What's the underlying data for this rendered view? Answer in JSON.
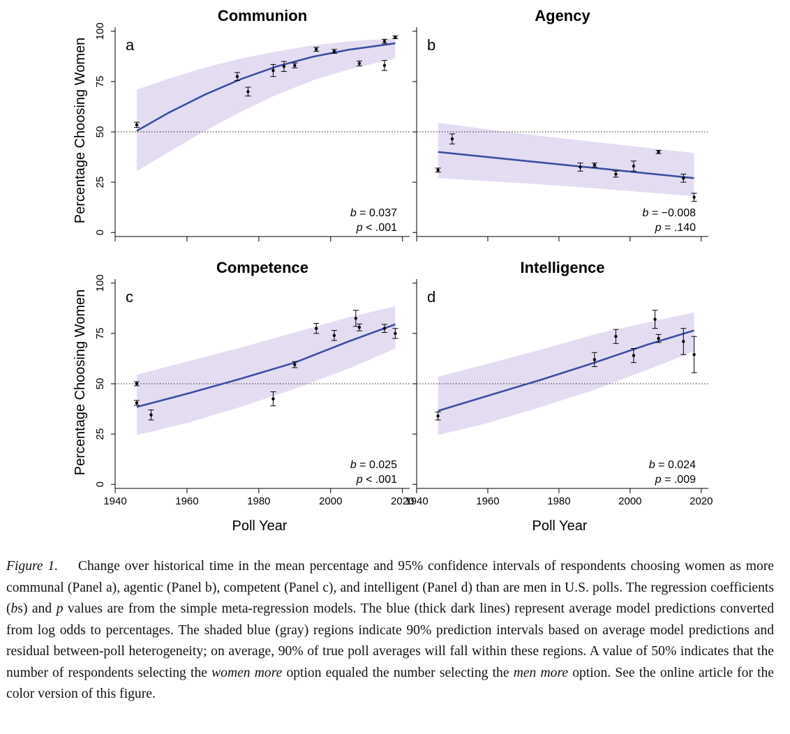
{
  "figure": {
    "shared_ylabel": "Percentage Choosing Women",
    "shared_xlabel": "Poll Year",
    "xticks": [
      1940,
      1960,
      1980,
      2000,
      2020
    ],
    "yticks": [
      0,
      25,
      50,
      75,
      100
    ]
  },
  "chart_data": [
    {
      "type": "scatter",
      "title": "Communion",
      "panel_letter": "a",
      "xlabel": "",
      "ylabel": "Percentage Choosing Women",
      "xlim": [
        1940,
        2022
      ],
      "ylim": [
        -2,
        102
      ],
      "reference_line": 50,
      "b_label": "b",
      "b_value": "= 0.037",
      "p_label": "p",
      "p_value": "< .001",
      "points": [
        {
          "x": 1946,
          "y": 53.5,
          "lo": 52.2,
          "hi": 54.8
        },
        {
          "x": 1974,
          "y": 77.5,
          "lo": 75.5,
          "hi": 79.5
        },
        {
          "x": 1977,
          "y": 70.0,
          "lo": 67.8,
          "hi": 72.2
        },
        {
          "x": 1984,
          "y": 80.5,
          "lo": 77.5,
          "hi": 83.5
        },
        {
          "x": 1987,
          "y": 82.5,
          "lo": 80.0,
          "hi": 85.0
        },
        {
          "x": 1990,
          "y": 83.0,
          "lo": 81.8,
          "hi": 84.2
        },
        {
          "x": 1996,
          "y": 91.0,
          "lo": 90.0,
          "hi": 92.0
        },
        {
          "x": 2001,
          "y": 90.0,
          "lo": 89.0,
          "hi": 91.0
        },
        {
          "x": 2008,
          "y": 84.0,
          "lo": 82.8,
          "hi": 85.2
        },
        {
          "x": 2015,
          "y": 95.0,
          "lo": 94.0,
          "hi": 96.0
        },
        {
          "x": 2015,
          "y": 83.0,
          "lo": 80.5,
          "hi": 85.5
        },
        {
          "x": 2018,
          "y": 97.0,
          "lo": 96.3,
          "hi": 97.7
        }
      ],
      "fit": {
        "x": [
          1946,
          1955,
          1965,
          1975,
          1985,
          1995,
          2005,
          2018
        ],
        "y": [
          50.5,
          59.6,
          68.5,
          76.2,
          82.5,
          87.3,
          90.8,
          94.0
        ]
      },
      "band_upper": {
        "x": [
          1946,
          1955,
          1965,
          1975,
          1985,
          1995,
          2005,
          2018
        ],
        "y": [
          71.0,
          76.5,
          82.0,
          86.5,
          90.0,
          93.0,
          95.0,
          96.5
        ]
      },
      "band_lower": {
        "x": [
          1946,
          1955,
          1965,
          1975,
          1985,
          1995,
          2005,
          2018
        ],
        "y": [
          30.5,
          40.0,
          50.5,
          60.0,
          68.5,
          75.5,
          81.0,
          86.5
        ]
      }
    },
    {
      "type": "scatter",
      "title": "Agency",
      "panel_letter": "b",
      "xlabel": "",
      "ylabel": "",
      "xlim": [
        1940,
        2022
      ],
      "ylim": [
        -2,
        102
      ],
      "reference_line": 50,
      "b_label": "b",
      "b_value": "= −0.008",
      "p_label": "p",
      "p_value": "= .140",
      "points": [
        {
          "x": 1946,
          "y": 31.0,
          "lo": 30.0,
          "hi": 32.0
        },
        {
          "x": 1950,
          "y": 46.5,
          "lo": 44.0,
          "hi": 49.0
        },
        {
          "x": 1986,
          "y": 32.5,
          "lo": 30.5,
          "hi": 34.5
        },
        {
          "x": 1990,
          "y": 33.5,
          "lo": 32.5,
          "hi": 34.5
        },
        {
          "x": 1996,
          "y": 29.0,
          "lo": 27.5,
          "hi": 30.5
        },
        {
          "x": 2001,
          "y": 33.0,
          "lo": 30.5,
          "hi": 35.5
        },
        {
          "x": 2008,
          "y": 40.0,
          "lo": 39.2,
          "hi": 40.8
        },
        {
          "x": 2015,
          "y": 27.0,
          "lo": 25.0,
          "hi": 29.0
        },
        {
          "x": 2018,
          "y": 17.5,
          "lo": 15.5,
          "hi": 19.5
        }
      ],
      "fit": {
        "x": [
          1946,
          2018
        ],
        "y": [
          40.0,
          27.0
        ]
      },
      "band_upper": {
        "x": [
          1946,
          1970,
          1990,
          2018
        ],
        "y": [
          54.5,
          49.0,
          45.0,
          39.5
        ]
      },
      "band_lower": {
        "x": [
          1946,
          1970,
          1990,
          2018
        ],
        "y": [
          27.0,
          24.5,
          22.0,
          18.0
        ]
      }
    },
    {
      "type": "scatter",
      "title": "Competence",
      "panel_letter": "c",
      "xlabel": "Poll Year",
      "ylabel": "Percentage Choosing Women",
      "xlim": [
        1940,
        2022
      ],
      "ylim": [
        -2,
        102
      ],
      "reference_line": 50,
      "b_label": "b",
      "b_value": "= 0.025",
      "p_label": "p",
      "p_value": "< .001",
      "points": [
        {
          "x": 1946,
          "y": 50.0,
          "lo": 49.0,
          "hi": 51.0
        },
        {
          "x": 1946,
          "y": 40.5,
          "lo": 39.3,
          "hi": 41.7
        },
        {
          "x": 1950,
          "y": 34.5,
          "lo": 32.0,
          "hi": 37.0
        },
        {
          "x": 1984,
          "y": 42.5,
          "lo": 39.0,
          "hi": 46.0
        },
        {
          "x": 1990,
          "y": 59.5,
          "lo": 58.0,
          "hi": 61.0
        },
        {
          "x": 1996,
          "y": 77.5,
          "lo": 75.0,
          "hi": 80.0
        },
        {
          "x": 2001,
          "y": 74.0,
          "lo": 71.5,
          "hi": 76.5
        },
        {
          "x": 2007,
          "y": 82.5,
          "lo": 78.5,
          "hi": 86.5
        },
        {
          "x": 2008,
          "y": 78.0,
          "lo": 76.3,
          "hi": 79.7
        },
        {
          "x": 2015,
          "y": 77.5,
          "lo": 75.5,
          "hi": 79.5
        },
        {
          "x": 2018,
          "y": 75.0,
          "lo": 72.5,
          "hi": 77.5
        }
      ],
      "fit": {
        "x": [
          1946,
          1960,
          1975,
          1990,
          2005,
          2018
        ],
        "y": [
          38.5,
          45.0,
          52.5,
          60.5,
          71.0,
          79.5
        ]
      },
      "band_upper": {
        "x": [
          1946,
          1960,
          1975,
          1990,
          2005,
          2018
        ],
        "y": [
          54.5,
          61.0,
          68.0,
          75.5,
          83.0,
          88.5
        ]
      },
      "band_lower": {
        "x": [
          1946,
          1960,
          1975,
          1990,
          2005,
          2018
        ],
        "y": [
          24.5,
          30.5,
          38.5,
          47.5,
          57.5,
          67.5
        ]
      }
    },
    {
      "type": "scatter",
      "title": "Intelligence",
      "panel_letter": "d",
      "xlabel": "Poll Year",
      "ylabel": "",
      "xlim": [
        1940,
        2022
      ],
      "ylim": [
        -2,
        102
      ],
      "reference_line": 50,
      "b_label": "b",
      "b_value": "= 0.024",
      "p_label": "p",
      "p_value": "= .009",
      "points": [
        {
          "x": 1946,
          "y": 34.0,
          "lo": 32.0,
          "hi": 36.0
        },
        {
          "x": 1990,
          "y": 62.0,
          "lo": 58.5,
          "hi": 65.5
        },
        {
          "x": 1996,
          "y": 73.5,
          "lo": 70.0,
          "hi": 77.0
        },
        {
          "x": 2001,
          "y": 64.0,
          "lo": 60.5,
          "hi": 67.5
        },
        {
          "x": 2007,
          "y": 82.0,
          "lo": 77.5,
          "hi": 86.5
        },
        {
          "x": 2008,
          "y": 72.5,
          "lo": 70.5,
          "hi": 74.5
        },
        {
          "x": 2015,
          "y": 71.0,
          "lo": 64.5,
          "hi": 77.5
        },
        {
          "x": 2018,
          "y": 64.5,
          "lo": 55.5,
          "hi": 73.5
        }
      ],
      "fit": {
        "x": [
          1946,
          1960,
          1975,
          1990,
          2005,
          2018
        ],
        "y": [
          36.5,
          44.0,
          52.0,
          60.5,
          69.5,
          76.5
        ]
      },
      "band_upper": {
        "x": [
          1946,
          1960,
          1975,
          1990,
          2005,
          2018
        ],
        "y": [
          53.5,
          60.0,
          67.0,
          74.5,
          80.5,
          85.5
        ]
      },
      "band_lower": {
        "x": [
          1946,
          1960,
          1975,
          1990,
          2005,
          2018
        ],
        "y": [
          24.5,
          30.5,
          38.5,
          47.0,
          57.0,
          66.0
        ]
      }
    }
  ],
  "caption": {
    "label": "Figure 1.",
    "parts": [
      {
        "text": "Change over historical time in the mean percentage and 95% confidence intervals of respondents choosing women as more communal (Panel a), agentic (Panel b), competent (Panel c), and intelligent (Panel d) than are men in U.S. polls. The regression coefficients (",
        "italic": false
      },
      {
        "text": "b",
        "italic": true
      },
      {
        "text": "s) and ",
        "italic": false
      },
      {
        "text": "p",
        "italic": true
      },
      {
        "text": " values are from the simple meta-regression models. The blue (thick dark lines) represent average model predictions converted from log odds to percentages. The shaded blue (gray) regions indicate 90% prediction intervals based on average model predictions and residual between-poll heterogeneity; on average, 90% of true poll averages will fall within these regions. A value of 50% indicates that the number of respondents selecting the ",
        "italic": false
      },
      {
        "text": "women more",
        "italic": true
      },
      {
        "text": " option equaled the number selecting the ",
        "italic": false
      },
      {
        "text": "men more",
        "italic": true
      },
      {
        "text": " option. See the online article for the color version of this figure.",
        "italic": false
      }
    ]
  },
  "colors": {
    "fit_line": "#3b4fa0",
    "band": "#e4ddf2",
    "ink": "#000000"
  }
}
